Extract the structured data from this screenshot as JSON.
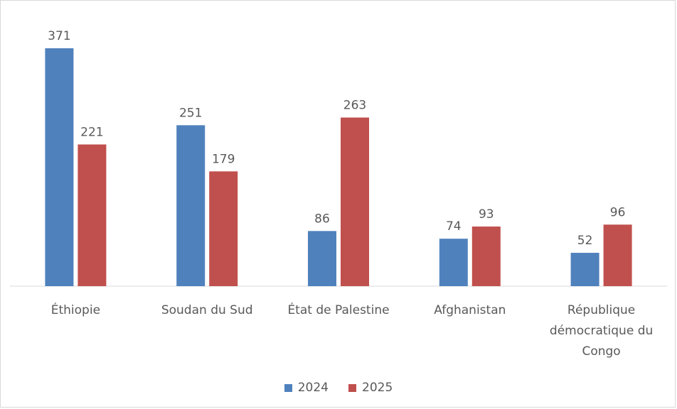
{
  "chart_data": {
    "type": "bar",
    "categories": [
      "Éthiopie",
      "Soudan du Sud",
      "État de Palestine",
      "Afghanistan",
      "République démocratique du Congo"
    ],
    "category_lines": [
      [
        "Éthiopie"
      ],
      [
        "Soudan du Sud"
      ],
      [
        "État de Palestine"
      ],
      [
        "Afghanistan"
      ],
      [
        "République",
        "démocratique du",
        "Congo"
      ]
    ],
    "series": [
      {
        "name": "2024",
        "values": [
          371,
          251,
          86,
          74,
          52
        ],
        "color": "#4f81bd"
      },
      {
        "name": "2025",
        "values": [
          221,
          179,
          263,
          93,
          96
        ],
        "color": "#c0504d"
      }
    ],
    "ylim": [
      0,
      371
    ],
    "grid": false,
    "legend_position": "bottom",
    "title": "",
    "xlabel": "",
    "ylabel": ""
  }
}
